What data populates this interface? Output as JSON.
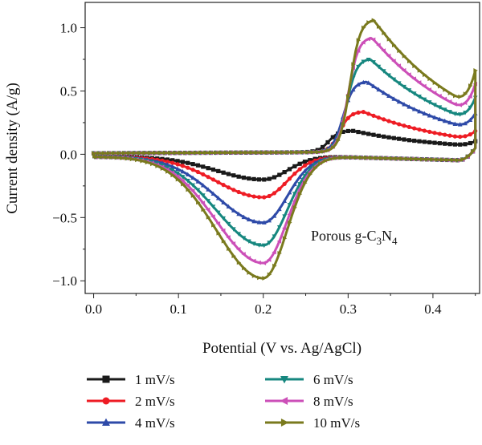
{
  "chart_data": {
    "type": "line",
    "xlabel": "Potential (V vs. Ag/AgCl)",
    "ylabel": "Current density (A/g)",
    "xlim": [
      -0.01,
      0.455
    ],
    "ylim": [
      -1.1,
      1.2
    ],
    "xticks": [
      "0.0",
      "0.1",
      "0.2",
      "0.3",
      "0.4"
    ],
    "yticks": [
      "1.0",
      "0.5",
      "0.0",
      "−0.5",
      "−1.0"
    ],
    "annotation": {
      "prefix": "Porous g-C",
      "sub1": "3",
      "mid": "N",
      "sub2": "4",
      "x": 0.295,
      "y": -0.8
    },
    "legend_position": "bottom",
    "series": [
      {
        "name": "1 mV/s",
        "color": "#1a1a1a",
        "marker": "square",
        "peak_anodic": [
          0.305,
          0.22
        ],
        "peak_cathodic": [
          0.2,
          -0.22
        ],
        "end": [
          0.45,
          0.1
        ]
      },
      {
        "name": "2 mV/s",
        "color": "#ee1c24",
        "marker": "circle",
        "peak_anodic": [
          0.318,
          0.37
        ],
        "peak_cathodic": [
          0.2,
          -0.36
        ],
        "end": [
          0.45,
          0.15
        ]
      },
      {
        "name": "4 mV/s",
        "color": "#2e4aa8",
        "marker": "triangle-up",
        "peak_anodic": [
          0.322,
          0.61
        ],
        "peak_cathodic": [
          0.2,
          -0.56
        ],
        "end": [
          0.45,
          0.25
        ]
      },
      {
        "name": "6 mV/s",
        "color": "#16877f",
        "marker": "triangle-down",
        "peak_anodic": [
          0.326,
          0.79
        ],
        "peak_cathodic": [
          0.2,
          -0.74
        ],
        "end": [
          0.45,
          0.35
        ]
      },
      {
        "name": "8 mV/s",
        "color": "#cc4fb8",
        "marker": "triangle-left",
        "peak_anodic": [
          0.328,
          0.96
        ],
        "peak_cathodic": [
          0.2,
          -0.88
        ],
        "end": [
          0.45,
          0.43
        ]
      },
      {
        "name": "10 mV/s",
        "color": "#7a7a1e",
        "marker": "triangle-right",
        "peak_anodic": [
          0.33,
          1.1
        ],
        "peak_cathodic": [
          0.2,
          -1.0
        ],
        "end": [
          0.45,
          0.52
        ]
      }
    ]
  }
}
